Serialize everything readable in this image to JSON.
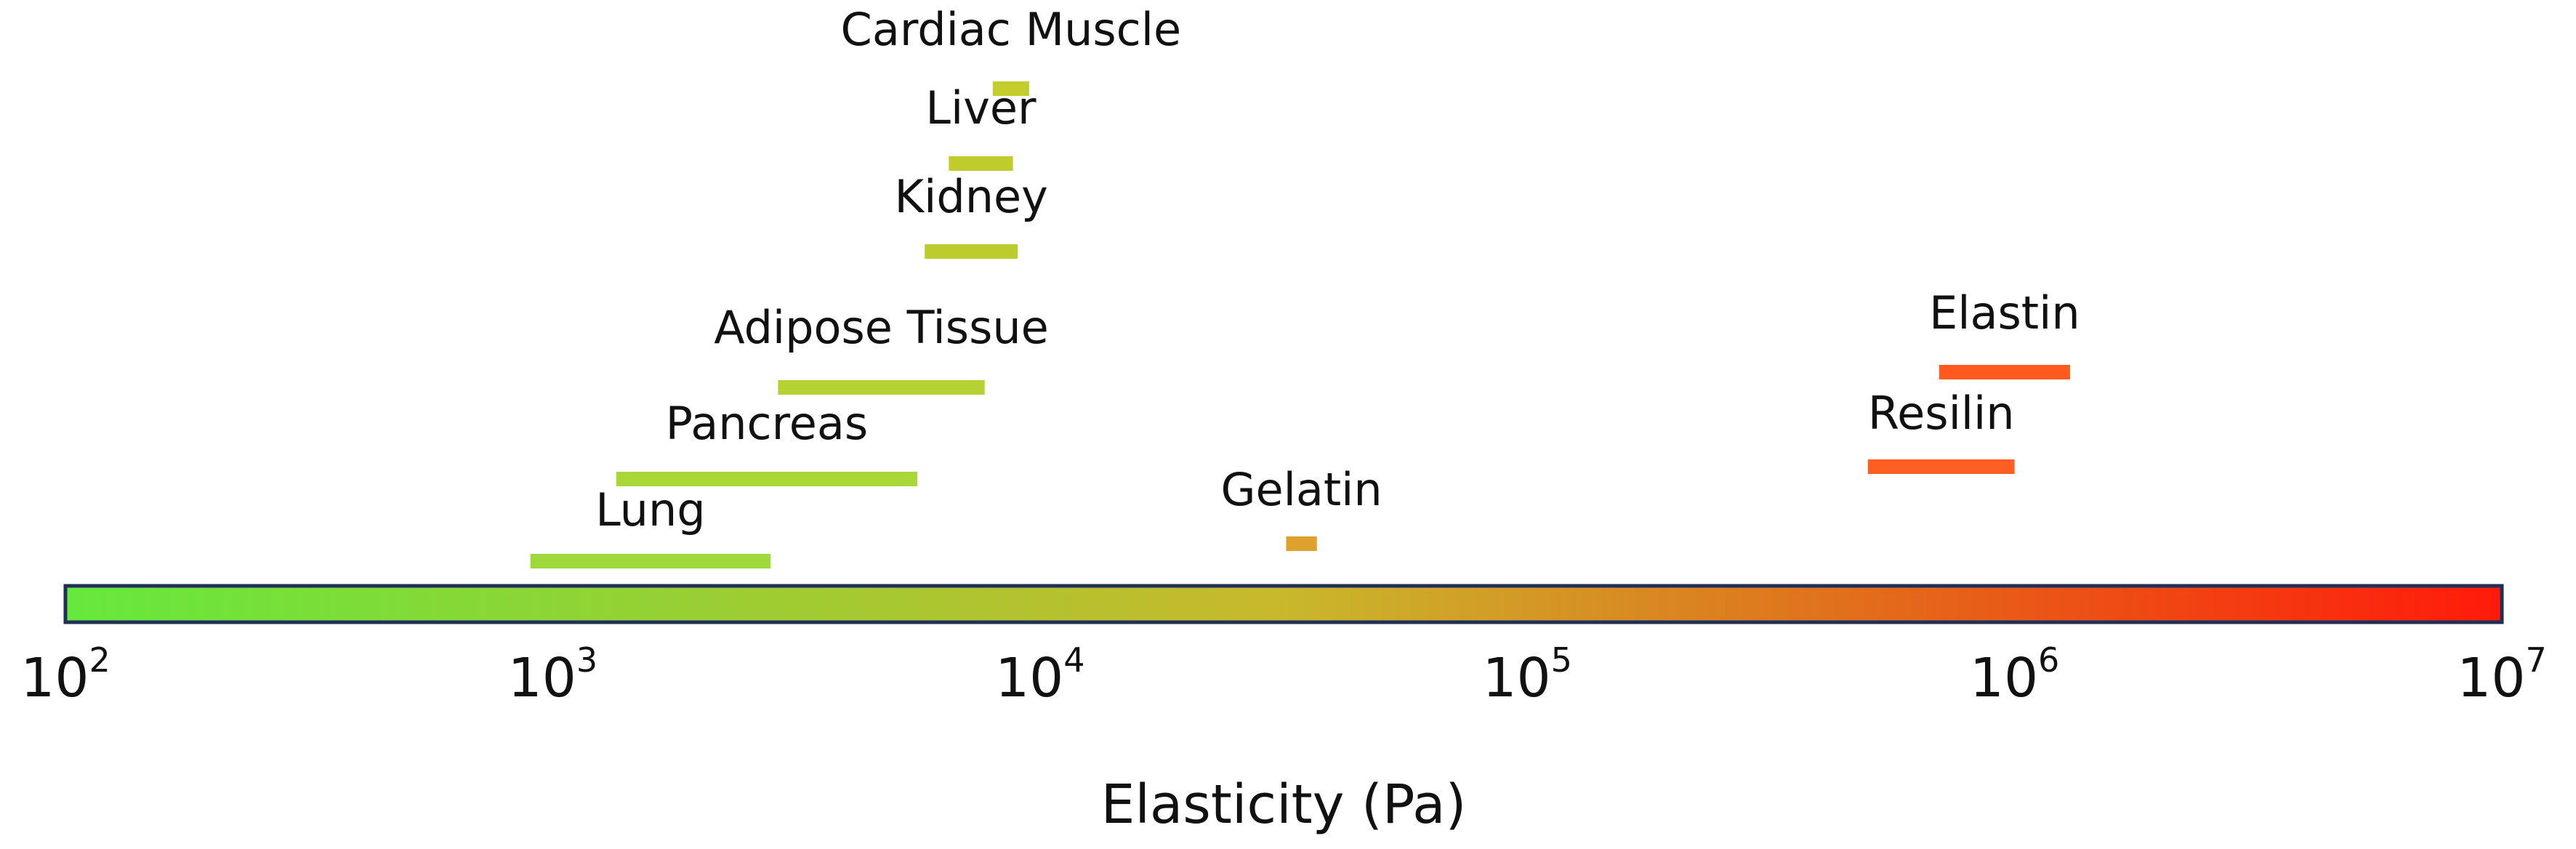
{
  "chart_data": {
    "type": "range",
    "xlabel": "Elasticity (Pa)",
    "x_scale": "log10",
    "xlim": [
      100,
      10000000
    ],
    "tick_labels": [
      {
        "base": "10",
        "exp": "2"
      },
      {
        "base": "10",
        "exp": "3"
      },
      {
        "base": "10",
        "exp": "4"
      },
      {
        "base": "10",
        "exp": "5"
      },
      {
        "base": "10",
        "exp": "6"
      },
      {
        "base": "10",
        "exp": "7"
      }
    ],
    "colorbar": {
      "low_color": "#66e83c",
      "mid_color": "#c8b82c",
      "high_color": "#ff1a0a"
    },
    "ranges": [
      {
        "name": "Cardiac Muscle",
        "min": 8000,
        "max": 9500,
        "color": "#c3cd2c"
      },
      {
        "name": "Liver",
        "min": 6500,
        "max": 8800,
        "color": "#c0cc2c"
      },
      {
        "name": "Kidney",
        "min": 5800,
        "max": 9000,
        "color": "#bccc2c"
      },
      {
        "name": "Adipose Tissue",
        "min": 2900,
        "max": 7700,
        "color": "#b4d333"
      },
      {
        "name": "Pancreas",
        "min": 1350,
        "max": 5600,
        "color": "#a8d737"
      },
      {
        "name": "Lung",
        "min": 900,
        "max": 2800,
        "color": "#9ed83a"
      },
      {
        "name": "Gelatin",
        "min": 32000,
        "max": 37000,
        "color": "#dca22d"
      },
      {
        "name": "Elastin",
        "min": 700000,
        "max": 1300000,
        "color": "#ff5a1e"
      },
      {
        "name": "Resilin",
        "min": 500000,
        "max": 1000000,
        "color": "#ff5e22"
      }
    ]
  }
}
